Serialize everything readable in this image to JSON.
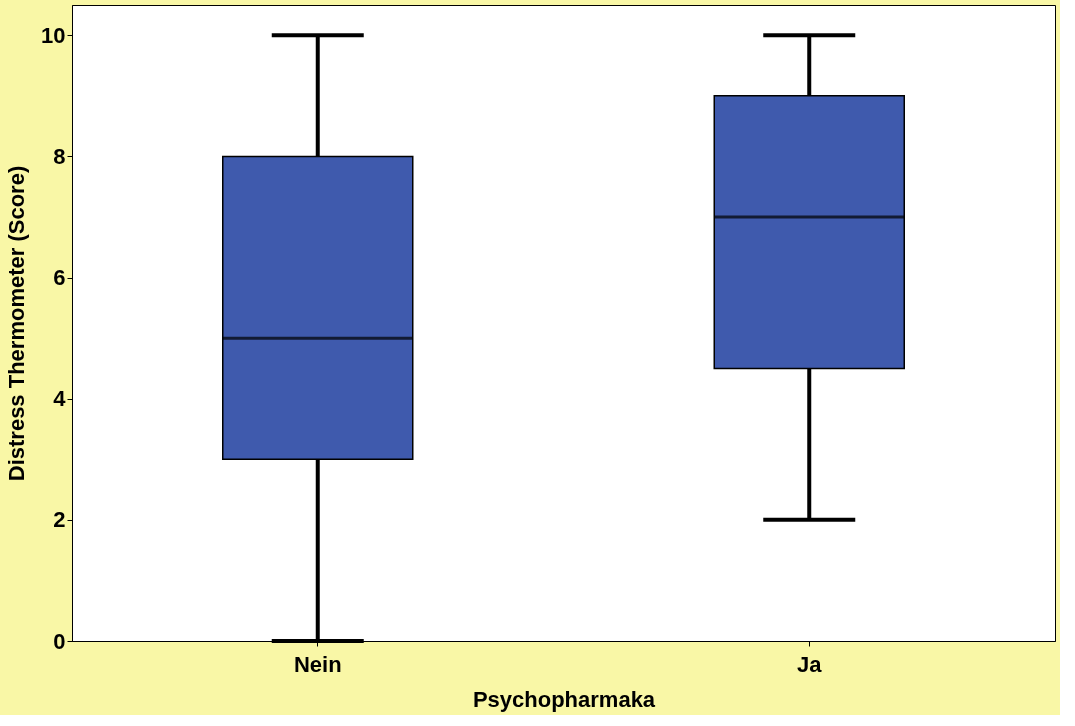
{
  "chart_data": {
    "type": "box",
    "xlabel": "Psychopharmaka",
    "ylabel": "Distress Thermometer (Score)",
    "categories": [
      "Nein",
      "Ja"
    ],
    "series": [
      {
        "color": "#3f5aad",
        "boxes": [
          {
            "low": 0,
            "q1": 3,
            "median": 5,
            "q3": 8,
            "high": 10
          },
          {
            "low": 2,
            "q1": 4.5,
            "median": 7,
            "q3": 9,
            "high": 10
          }
        ]
      }
    ],
    "ylim": [
      0,
      10.5
    ],
    "yticks": [
      0,
      2,
      4,
      6,
      8,
      10
    ]
  }
}
